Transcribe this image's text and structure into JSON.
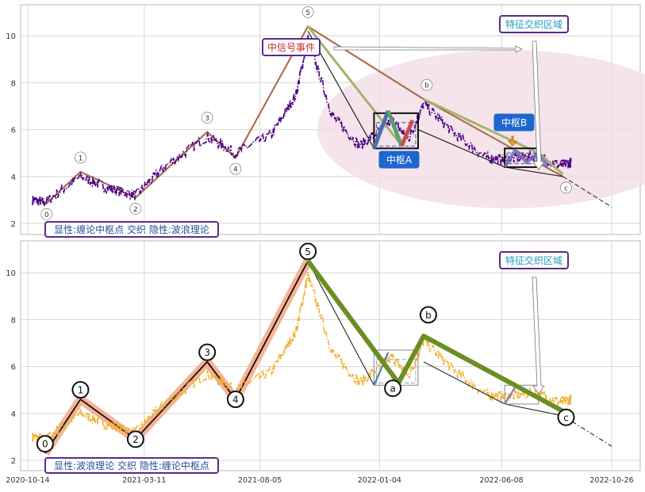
{
  "colors": {
    "frame": "#b8b8b8",
    "grid": "#d6d6d6",
    "top_price": "#4b0082",
    "bottom_price": "#f0b030",
    "wave_bg": "#f4a582",
    "green_leg": "#6b8e23",
    "olive_leg": "#a3b36c",
    "zoneA_up": "#4a6fb0",
    "zoneA_green": "#5aa06a",
    "zoneA_red": "#c94e4e",
    "label_border": "#5a2a8a",
    "label_text_red": "#c03030",
    "label_text_blue": "#1f4e9a",
    "teal_text": "#1f9bbf",
    "zone_bg": "#1e66d0",
    "ellipse": "#f3dde6"
  },
  "chart_data": [
    {
      "type": "line",
      "panel": "top",
      "x_tick_labels": [
        "2020-10-14",
        "2021-03-11",
        "2021-08-05",
        "2022-01-04",
        "2022-06-08",
        "2022-10-26"
      ],
      "y_ticks": [
        2,
        4,
        6,
        8,
        10
      ],
      "ylim": [
        1.6,
        11.3
      ],
      "xlim": [
        "2020-10-14",
        "2022-11-05"
      ],
      "grid": true,
      "waves": [
        {
          "label": "0",
          "date": "2020-11-05",
          "value": 2.8
        },
        {
          "label": "1",
          "date": "2020-12-20",
          "value": 4.2
        },
        {
          "label": "2",
          "date": "2021-02-28",
          "value": 3.1
        },
        {
          "label": "3",
          "date": "2021-05-30",
          "value": 5.9
        },
        {
          "label": "4",
          "date": "2021-07-05",
          "value": 4.8
        },
        {
          "label": "5",
          "date": "2021-10-05",
          "value": 10.4
        },
        {
          "label": "b",
          "date": "2022-03-01",
          "value": 7.3
        },
        {
          "label": "c",
          "date": "2022-08-25",
          "value": 4.0
        }
      ],
      "zhongshu_A": {
        "label": "中枢A",
        "date_from": "2021-12-28",
        "date_to": "2022-02-22",
        "low": 5.2,
        "high": 6.7
      },
      "zhongshu_B": {
        "label": "中枢B",
        "date_from": "2022-06-12",
        "date_to": "2022-07-25",
        "low": 4.4,
        "high": 5.2
      },
      "annotations": {
        "signal": "中信号事件",
        "region": "特征交织区域",
        "legend": "显性:缠论中枢点 交织 隐性:波浪理论"
      }
    },
    {
      "type": "line",
      "panel": "bottom",
      "x_tick_labels": [
        "2020-10-14",
        "2021-03-11",
        "2021-08-05",
        "2022-01-04",
        "2022-06-08",
        "2022-10-26"
      ],
      "y_ticks": [
        2,
        4,
        6,
        8,
        10
      ],
      "ylim": [
        1.6,
        11.3
      ],
      "grid": true,
      "waves": [
        {
          "label": "0",
          "date": "2020-11-05",
          "value": 2.3
        },
        {
          "label": "1",
          "date": "2020-12-20",
          "value": 4.6
        },
        {
          "label": "2",
          "date": "2021-02-28",
          "value": 2.9
        },
        {
          "label": "3",
          "date": "2021-05-30",
          "value": 6.2
        },
        {
          "label": "4",
          "date": "2021-07-05",
          "value": 4.6
        },
        {
          "label": "5",
          "date": "2021-10-05",
          "value": 10.5
        },
        {
          "label": "a",
          "date": "2022-01-28",
          "value": 4.8
        },
        {
          "label": "b",
          "date": "2022-03-01",
          "value": 7.8
        },
        {
          "label": "c",
          "date": "2022-08-25",
          "value": 3.9
        }
      ],
      "annotations": {
        "region": "特征交织区域",
        "legend": "显性:波浪理论 交织 隐性:缠论中枢点"
      }
    }
  ]
}
